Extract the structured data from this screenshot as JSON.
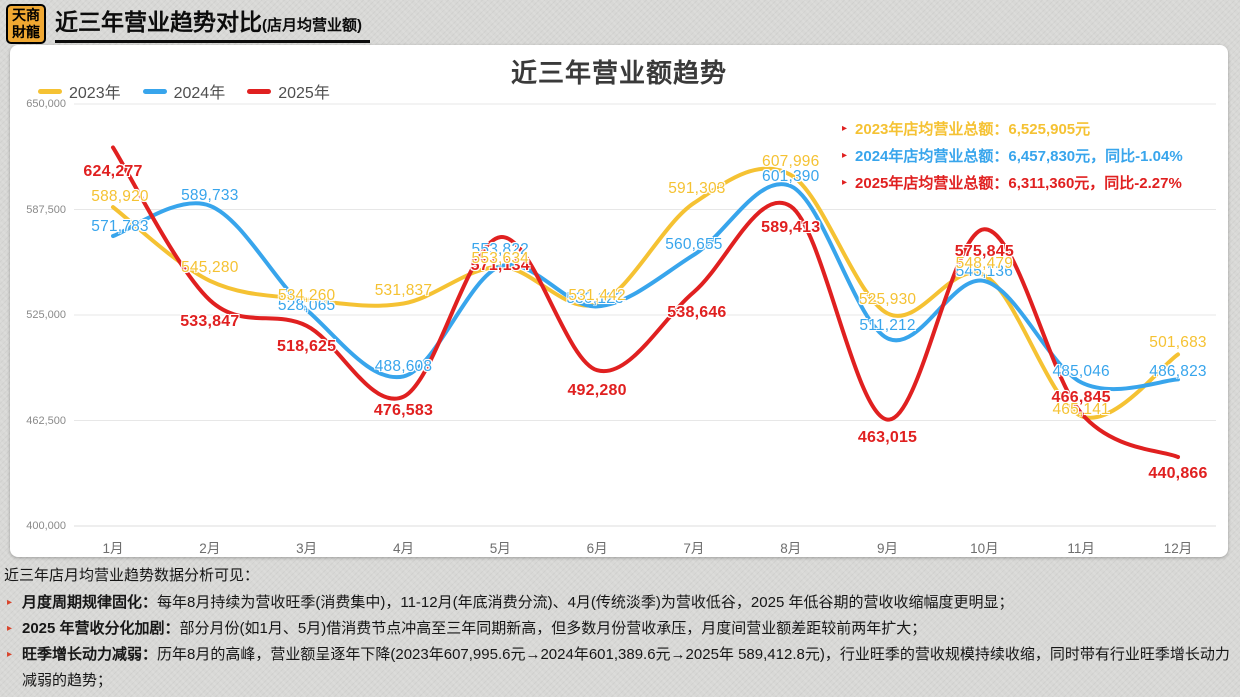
{
  "header": {
    "logo_lines": [
      "天商",
      "財龍"
    ],
    "title": "近三年营业趋势对比",
    "title_suffix": "(店月均营业额)"
  },
  "chart_data": {
    "type": "line",
    "title": "近三年营业额趋势",
    "categories": [
      "1月",
      "2月",
      "3月",
      "4月",
      "5月",
      "6月",
      "7月",
      "8月",
      "9月",
      "10月",
      "11月",
      "12月"
    ],
    "series": [
      {
        "name": "2023年",
        "color": "#F5C233",
        "values": [
          588920,
          545280,
          534260,
          531837,
          553634,
          531442,
          591303,
          607996,
          525930,
          548479,
          465141,
          501683
        ]
      },
      {
        "name": "2024年",
        "color": "#38A5EC",
        "values": [
          571783,
          589733,
          528065,
          488608,
          553822,
          530123,
          560655,
          601390,
          511212,
          545136,
          485046,
          486823
        ]
      },
      {
        "name": "2025年",
        "color": "#E02020",
        "values": [
          624277,
          533847,
          518625,
          476583,
          571134,
          492280,
          538646,
          589413,
          463015,
          575845,
          466845,
          440866
        ]
      }
    ],
    "ylim": [
      400000,
      650000
    ],
    "y_ticks": [
      "650,000",
      "587,500",
      "525,000",
      "462,500",
      "400,000"
    ],
    "grid": true,
    "legend_position": "top-left",
    "annotations": [
      {
        "text": "2023年店均营业总额：6,525,905元",
        "color": "#F5C233"
      },
      {
        "text": "2024年店均营业总额：6,457,830元，同比-1.04%",
        "color": "#38A5EC"
      },
      {
        "text": "2025年店均营业总额：6,311,360元，同比-2.27%",
        "color": "#E02020"
      }
    ]
  },
  "analysis": {
    "intro": "近三年店月均营业趋势数据分析可见：",
    "bullets": [
      {
        "lead": "月度周期规律固化：",
        "text": "每年8月持续为营收旺季(消费集中)，11-12月(年底消费分流)、4月(传统淡季)为营收低谷，2025 年低谷期的营收收缩幅度更明显；"
      },
      {
        "lead": "2025 年营收分化加剧：",
        "text": "部分月份(如1月、5月)借消费节点冲高至三年同期新高，但多数月份营收承压，月度间营业额差距较前两年扩大；"
      },
      {
        "lead": "旺季增长动力减弱：",
        "text": "历年8月的高峰，营业额呈逐年下降(2023年607,995.6元→2024年601,389.6元→2025年 589,412.8元)，行业旺季的营收规模持续收缩，同时带有行业旺季增长动力减弱的趋势；"
      }
    ]
  }
}
